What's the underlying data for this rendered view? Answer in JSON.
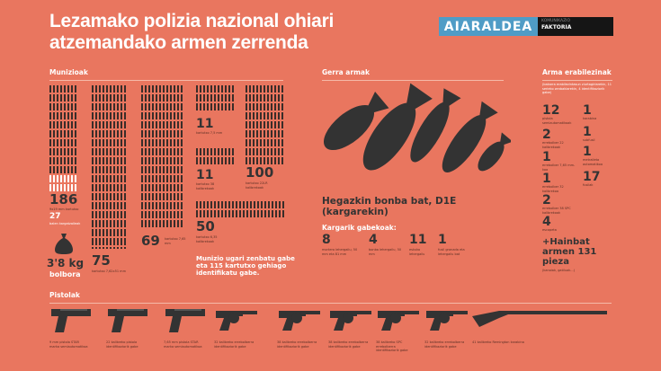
{
  "title": "Lezamako polizia nazional ohiari atzemandako armen zerrenda",
  "logo": {
    "name": "AIARALDEA",
    "sub1": "KOMUNIKAZIO",
    "sub2": "FAKTORIA",
    "brand_color": "#4f9cc6"
  },
  "colors": {
    "background": "#e9765f",
    "dark": "#333333",
    "white": "#ffffff"
  },
  "munizioak": {
    "heading": "Munizioak",
    "items": [
      {
        "value": "186",
        "caption": "9x19 mm kartutxo"
      },
      {
        "value": "27",
        "caption": "balen kargatzaileak"
      },
      {
        "value": "75",
        "caption": "kartutxo 7,62x51 mm"
      },
      {
        "value": "69",
        "caption": "kartutxo 7,65 mm"
      },
      {
        "value": "11",
        "caption": "kartutxo 7,5 mm"
      },
      {
        "value": "11",
        "caption": "kartutxo 38 kalibrekoak"
      },
      {
        "value": "100",
        "caption": "kartutxo 22LR kalibrekoak"
      },
      {
        "value": "50",
        "caption": "kartutxo 6,35 kalibrekoak"
      }
    ],
    "powder": {
      "value": "3'8 kg",
      "label": "bolbora",
      "icon": "sack-icon"
    },
    "note": "Munizio ugari zenbatu gabe eta 115 kartutxo gehiago identifikatu gabe."
  },
  "gerra_armak": {
    "heading": "Gerra armak",
    "bomb_title": "Hegazkin bonba bat, D1E (kargarekin)",
    "subheading": "Kargarik gabekoak:",
    "items": [
      {
        "value": "8",
        "caption": "mortero lehergailu, 50 mm eta 81 mm"
      },
      {
        "value": "4",
        "caption": "bonba lehergailu, 50 mm"
      },
      {
        "value": "11",
        "caption": "eskuko lehergailu"
      },
      {
        "value": "1",
        "caption": "fusil granada eta lehergailu bat"
      }
    ]
  },
  "arma_erabilezinak": {
    "heading": "Arma erabilezinak",
    "intro": "(bakarra erabilezintasun ziurtagiriarekin, 11 serieko zenbakiarekin, 4 identifikaziorik gabe)",
    "left": [
      {
        "value": "12",
        "caption": "pistola semiautomatikoak"
      },
      {
        "value": "2",
        "caption": "errebolber 22 kalibrekoak"
      },
      {
        "value": "1",
        "caption": "errebolber 7,65 mm-koa"
      },
      {
        "value": "1",
        "caption": "errebolber 32 kalibrekoa"
      },
      {
        "value": "2",
        "caption": "errebolber 38 SPC kalibrekoak"
      },
      {
        "value": "4",
        "caption": "escopeta"
      }
    ],
    "right": [
      {
        "value": "1",
        "caption": "karabina"
      },
      {
        "value": "1",
        "caption": "subfusil"
      },
      {
        "value": "1",
        "caption": "metraileta automatikoa"
      },
      {
        "value": "17",
        "caption": "fusilak"
      }
    ],
    "extra": "+Hainbat armen 131 pieza",
    "extra_caption": "(kanoiak, gatiluak...)"
  },
  "pistolak": {
    "heading": "Pistolak",
    "items": [
      {
        "caption": "9 mm pistola STAR marka semiautomatikoa",
        "icon": "pistol-icon"
      },
      {
        "caption": "22 kalibreko pistola identifikaziorik gabe",
        "icon": "pistol-icon"
      },
      {
        "caption": "7,65 mm pistola STAR marka semiautomatikoa",
        "icon": "pistol-icon"
      },
      {
        "caption": "32 kalibreko errebolberra identifikaziorik gabe",
        "icon": "revolver-icon"
      },
      {
        "caption": "38 kalibreko errebolberra identifikaziorik gabe",
        "icon": "revolver-icon"
      },
      {
        "caption": "38 kalibreko errebolberra identifikaziorik gabe",
        "icon": "revolver-icon"
      },
      {
        "caption": "38 kalibreko SPC errebolberra identifikaziorik gabe",
        "icon": "revolver-icon"
      },
      {
        "caption": "32 kalibreko errebolberra identifikaziorik gabe",
        "icon": "revolver-icon"
      },
      {
        "caption": "41 kalibreko Remington karabina",
        "icon": "rifle-icon"
      }
    ]
  }
}
